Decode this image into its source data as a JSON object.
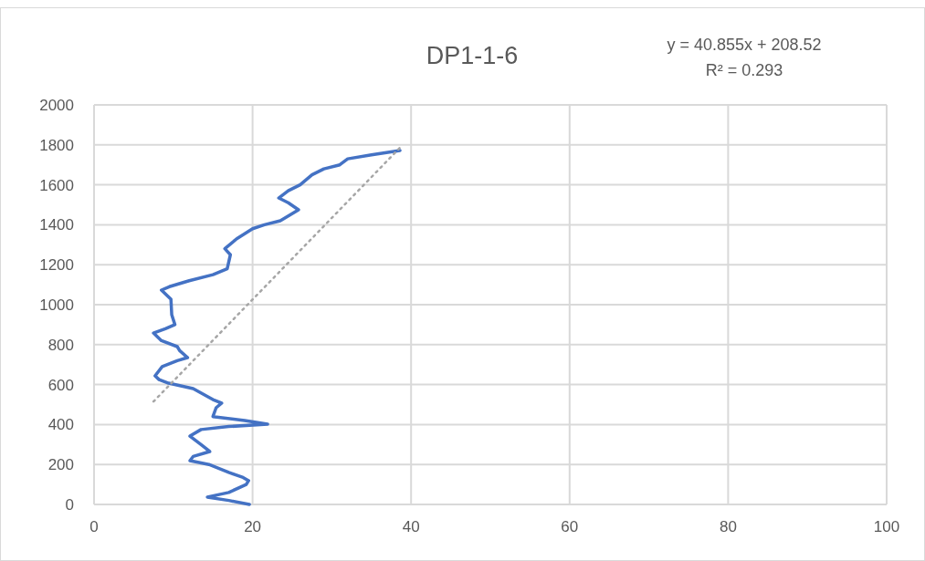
{
  "chart_data": {
    "type": "line",
    "title": "DP1-1-6",
    "annotations": [
      "y = 40.855x + 208.52",
      "R² = 0.293"
    ],
    "xlim": [
      0,
      100
    ],
    "xticks": [
      0,
      20,
      40,
      60,
      80,
      100
    ],
    "ylim": [
      0,
      2000
    ],
    "yticks": [
      0,
      200,
      400,
      600,
      800,
      1000,
      1200,
      1400,
      1600,
      1800,
      2000
    ],
    "grid": true,
    "series": [
      {
        "color": "#4472c4",
        "line_style": "solid",
        "x": [
          19.6,
          17,
          14.3,
          17,
          19.2,
          19.5,
          18.8,
          17,
          14.5,
          12.1,
          12.5,
          14.6,
          13.5,
          12.1,
          13.5,
          17,
          21.9,
          19,
          15,
          15.4,
          16.1,
          15,
          12.5,
          9.4,
          8.2,
          7.7,
          8.6,
          10.5,
          11.8,
          10.8,
          10.5,
          8.5,
          7.5,
          9,
          10.2,
          9.8,
          9.7,
          8.5,
          9.5,
          12,
          15,
          16.8,
          17.2,
          16.5,
          18,
          20,
          21.5,
          23.5,
          25.8,
          24.5,
          23.3,
          24.5,
          26,
          27.5,
          29,
          31,
          32,
          35,
          38.6
        ],
        "values": [
          0,
          20,
          37,
          60,
          100,
          119,
          135,
          160,
          200,
          219,
          240,
          265,
          300,
          342,
          375,
          390,
          402,
          420,
          440,
          484,
          507,
          525,
          580,
          607,
          625,
          644,
          690,
          720,
          735,
          770,
          790,
          820,
          858,
          880,
          900,
          950,
          1027,
          1073,
          1090,
          1120,
          1150,
          1180,
          1250,
          1280,
          1330,
          1380,
          1400,
          1420,
          1475,
          1510,
          1534,
          1570,
          1600,
          1650,
          1680,
          1700,
          1730,
          1750,
          1772
        ]
      },
      {
        "color": "#a6a6a6",
        "line_style": "dotted",
        "x": [
          7.5,
          38.7
        ],
        "values": [
          515,
          1790
        ]
      }
    ]
  }
}
